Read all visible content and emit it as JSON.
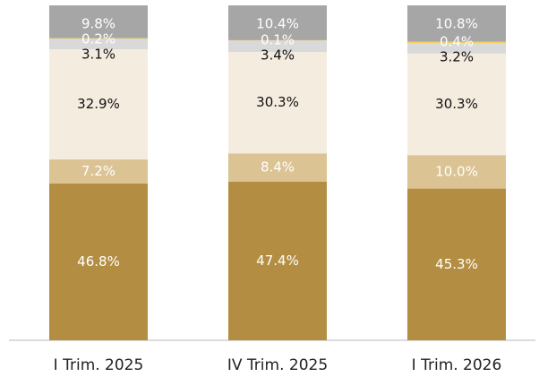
{
  "chart_data": {
    "type": "bar",
    "stacked": true,
    "categories": [
      "I Trim. 2025",
      "IV Trim. 2025",
      "I Trim. 2026"
    ],
    "series": [
      {
        "color": "#b38e42",
        "values": [
          46.8,
          47.4,
          45.3
        ],
        "value_labels": [
          "46.8%",
          "47.4%",
          "45.3%"
        ]
      },
      {
        "color": "#dcc393",
        "values": [
          7.2,
          8.4,
          10.0
        ],
        "value_labels": [
          "7.2%",
          "8.4%",
          "10.0%"
        ]
      },
      {
        "color": "#f5ece0",
        "values": [
          32.9,
          30.3,
          30.3
        ],
        "value_labels": [
          "32.9%",
          "30.3%",
          "30.3%"
        ]
      },
      {
        "color": "#d9d9d9",
        "values": [
          3.1,
          3.4,
          3.2
        ],
        "value_labels": [
          "3.1%",
          "3.4%",
          "3.2%"
        ]
      },
      {
        "color": "#f2c84b",
        "values": [
          0.2,
          0.1,
          0.4
        ],
        "value_labels": [
          "0.2%",
          "0.1%",
          "0.4%"
        ]
      },
      {
        "color": "#a6a6a6",
        "values": [
          9.8,
          10.4,
          10.8
        ],
        "value_labels": [
          "9.8%",
          "10.4%",
          "10.8%"
        ]
      }
    ]
  }
}
